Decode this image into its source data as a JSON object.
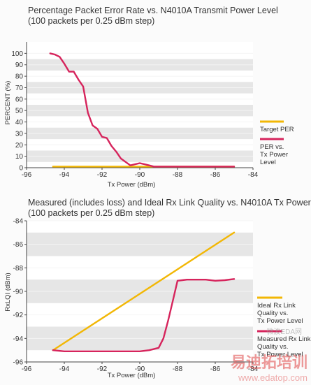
{
  "chart_data": [
    {
      "type": "line",
      "title": "Percentage Packet Error Rate vs. N4010A Transmit Power Level",
      "subtitle": "(100 packets per 0.25 dBm step)",
      "xlabel": "Tx Power (dBm)",
      "ylabel": "PERCENT (%)",
      "xlim": [
        -96,
        -84
      ],
      "ylim": [
        0,
        110
      ],
      "xticks": [
        -96,
        -94,
        -92,
        -90,
        -88,
        -86,
        -84
      ],
      "yticks": [
        0,
        10,
        20,
        30,
        40,
        50,
        60,
        70,
        80,
        90,
        100
      ],
      "grid": "horizontal bands",
      "legend_position": "right",
      "series": [
        {
          "name": "Target PER",
          "color": "#f2b705",
          "x": [
            -94.6,
            -85.0
          ],
          "y": [
            1,
            1
          ]
        },
        {
          "name": "PER vs. Tx Power Level",
          "color": "#d6245c",
          "x": [
            -94.75,
            -94.5,
            -94.25,
            -94.0,
            -93.75,
            -93.5,
            -93.25,
            -93.0,
            -92.75,
            -92.5,
            -92.25,
            -92.0,
            -91.75,
            -91.5,
            -91.25,
            -91.0,
            -90.75,
            -90.5,
            -90.25,
            -90.0,
            -89.75,
            -89.5,
            -89.25,
            -89.0,
            -88.5,
            -88.0,
            -87.5,
            -87.0,
            -86.5,
            -86.0,
            -85.5,
            -85.0
          ],
          "y": [
            100,
            99,
            97,
            91,
            84,
            84,
            77,
            71,
            48,
            37,
            34,
            27,
            26,
            19,
            14,
            8,
            5,
            2,
            3,
            4,
            3,
            2,
            1,
            1,
            1,
            1,
            1,
            1,
            1,
            1,
            1,
            1
          ]
        }
      ]
    },
    {
      "type": "line",
      "title": "Measured (includes loss) and Ideal Rx Link Quality vs. N4010A Tx Power",
      "subtitle": "(100 packets per 0.25 dBm step)",
      "xlabel": "Tx Power (dBm)",
      "ylabel": "RxLQI (dBm)",
      "xlim": [
        -96,
        -84
      ],
      "ylim": [
        -96,
        -84
      ],
      "xticks": [
        -96,
        -94,
        -92,
        -90,
        -88,
        -86,
        -84
      ],
      "yticks": [
        -96,
        -94,
        -92,
        -90,
        -88,
        -86,
        -84
      ],
      "grid": "horizontal bands",
      "legend_position": "right",
      "series": [
        {
          "name": "Ideal Rx Link Quality vs. Tx Power Level",
          "color": "#f2b705",
          "x": [
            -94.6,
            -85.0
          ],
          "y": [
            -95.0,
            -85.0
          ]
        },
        {
          "name": "Measured Rx Link Quality vs. Tx Power Level",
          "color": "#d6245c",
          "x": [
            -94.6,
            -94.0,
            -93.0,
            -92.0,
            -91.0,
            -90.0,
            -89.5,
            -89.0,
            -88.75,
            -88.5,
            -88.25,
            -88.0,
            -87.75,
            -87.5,
            -87.0,
            -86.5,
            -86.0,
            -85.5,
            -85.0
          ],
          "y": [
            -95.0,
            -95.1,
            -95.1,
            -95.1,
            -95.1,
            -95.1,
            -95.0,
            -94.8,
            -94.0,
            -92.5,
            -90.8,
            -89.1,
            -89.05,
            -89.0,
            -89.0,
            -89.0,
            -89.1,
            -89.05,
            -88.95
          ]
        }
      ]
    }
  ],
  "watermark": {
    "logo_text": "易迪拓培训",
    "site_url": "www.edatop.com",
    "small_text": "微波EDA网"
  }
}
